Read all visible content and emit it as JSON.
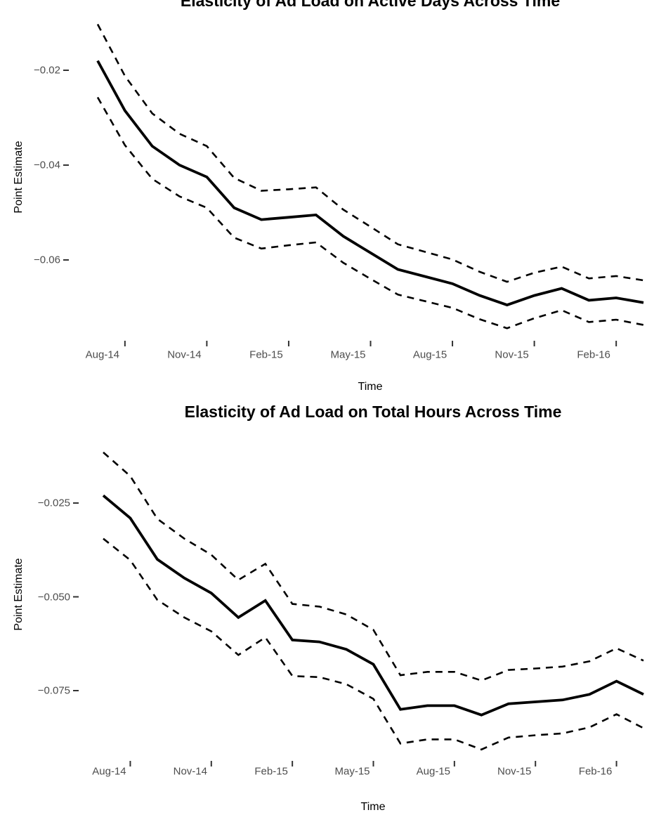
{
  "colors": {
    "line": "#000000",
    "tick_label": "#4d4d4d",
    "tick_mark": "#333333",
    "background": "#ffffff"
  },
  "chart_data": [
    {
      "type": "line",
      "title": "Elasticity of Ad Load on Active Days Across Time",
      "xlabel": "Time",
      "ylabel": "Point Estimate",
      "x": [
        "Jul-14",
        "Aug-14",
        "Sep-14",
        "Oct-14",
        "Nov-14",
        "Dec-14",
        "Jan-15",
        "Feb-15",
        "Mar-15",
        "Apr-15",
        "May-15",
        "Jun-15",
        "Jul-15",
        "Aug-15",
        "Sep-15",
        "Oct-15",
        "Nov-15",
        "Dec-15",
        "Jan-16",
        "Feb-16",
        "Mar-16"
      ],
      "x_axis_tick_labels": [
        "Aug-14",
        "Nov-14",
        "Feb-15",
        "May-15",
        "Aug-15",
        "Nov-15",
        "Feb-16"
      ],
      "y_axis_tick_labels": [
        "−0.02",
        "−0.04",
        "−0.06"
      ],
      "y_axis_tick_values": [
        -0.02,
        -0.04,
        -0.06
      ],
      "ylim": [
        -0.077,
        -0.009
      ],
      "grid": false,
      "legend": "none",
      "line_styles": {
        "point_estimate": "solid-bold",
        "upper_95ci": "dashed",
        "lower_95ci": "dashed"
      },
      "series": [
        {
          "name": "point_estimate",
          "values": [
            -0.018,
            -0.0285,
            -0.036,
            -0.04,
            -0.0425,
            -0.049,
            -0.0515,
            -0.051,
            -0.0505,
            -0.055,
            -0.0585,
            -0.062,
            -0.0635,
            -0.065,
            -0.0675,
            -0.0695,
            -0.0675,
            -0.066,
            -0.0685,
            -0.068,
            -0.069
          ]
        },
        {
          "name": "upper_95ci",
          "values": [
            -0.0103,
            -0.0212,
            -0.0291,
            -0.0334,
            -0.036,
            -0.0427,
            -0.0454,
            -0.0451,
            -0.0447,
            -0.0494,
            -0.053,
            -0.0567,
            -0.0583,
            -0.0599,
            -0.0625,
            -0.0646,
            -0.0627,
            -0.0614,
            -0.0639,
            -0.0634,
            -0.0643
          ]
        },
        {
          "name": "lower_95ci",
          "values": [
            -0.0257,
            -0.0358,
            -0.0429,
            -0.0466,
            -0.049,
            -0.0553,
            -0.0576,
            -0.0569,
            -0.0563,
            -0.0606,
            -0.064,
            -0.0673,
            -0.0687,
            -0.0701,
            -0.0725,
            -0.0744,
            -0.0723,
            -0.0706,
            -0.0731,
            -0.0726,
            -0.0737
          ]
        }
      ]
    },
    {
      "type": "line",
      "title": "Elasticity of Ad Load on Total Hours Across Time",
      "xlabel": "Time",
      "ylabel": "Point Estimate",
      "x": [
        "Jul-14",
        "Aug-14",
        "Sep-14",
        "Oct-14",
        "Nov-14",
        "Dec-14",
        "Jan-15",
        "Feb-15",
        "Mar-15",
        "Apr-15",
        "May-15",
        "Jun-15",
        "Jul-15",
        "Aug-15",
        "Sep-15",
        "Oct-15",
        "Nov-15",
        "Dec-15",
        "Jan-16",
        "Feb-16",
        "Mar-16"
      ],
      "x_axis_tick_labels": [
        "Aug-14",
        "Nov-14",
        "Feb-15",
        "May-15",
        "Aug-15",
        "Nov-15",
        "Feb-16"
      ],
      "y_axis_tick_labels": [
        "−0.025",
        "−0.050",
        "−0.075"
      ],
      "y_axis_tick_values": [
        -0.025,
        -0.05,
        -0.075
      ],
      "ylim": [
        -0.094,
        -0.006
      ],
      "grid": false,
      "legend": "none",
      "line_styles": {
        "point_estimate": "solid-bold",
        "upper_95ci": "dashed",
        "lower_95ci": "dashed"
      },
      "series": [
        {
          "name": "point_estimate",
          "values": [
            -0.023,
            -0.029,
            -0.04,
            -0.045,
            -0.049,
            -0.0555,
            -0.051,
            -0.0615,
            -0.062,
            -0.064,
            -0.068,
            -0.08,
            -0.079,
            -0.079,
            -0.0815,
            -0.0785,
            -0.078,
            -0.0775,
            -0.076,
            -0.0725,
            -0.076
          ]
        },
        {
          "name": "upper_95ci",
          "values": [
            -0.0115,
            -0.0178,
            -0.0292,
            -0.0345,
            -0.0388,
            -0.0455,
            -0.0412,
            -0.0519,
            -0.0526,
            -0.0547,
            -0.0588,
            -0.0709,
            -0.07,
            -0.07,
            -0.0723,
            -0.0695,
            -0.0691,
            -0.0686,
            -0.0672,
            -0.0637,
            -0.067
          ]
        },
        {
          "name": "lower_95ci",
          "values": [
            -0.0345,
            -0.0402,
            -0.0508,
            -0.0555,
            -0.0592,
            -0.0655,
            -0.0608,
            -0.0711,
            -0.0714,
            -0.0733,
            -0.0772,
            -0.0891,
            -0.088,
            -0.088,
            -0.0907,
            -0.0875,
            -0.0869,
            -0.0864,
            -0.0848,
            -0.0813,
            -0.085
          ]
        }
      ]
    }
  ]
}
